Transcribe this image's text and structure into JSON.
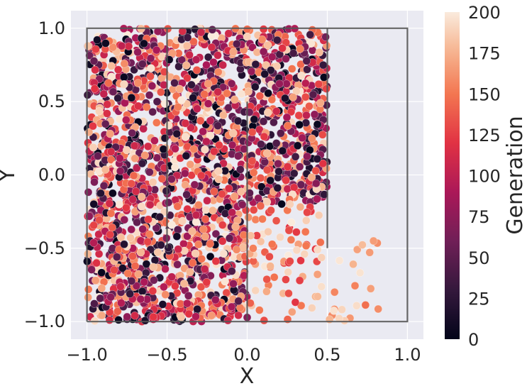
{
  "chart_data": {
    "type": "scatter",
    "xlabel": "X",
    "ylabel": "Y",
    "xlim": [
      -1.1,
      1.1
    ],
    "ylim": [
      -1.12,
      1.12
    ],
    "x_ticks": [
      -1.0,
      -0.5,
      0.0,
      0.5,
      1.0
    ],
    "x_tick_labels": [
      "−1.0",
      "−0.5",
      "0.0",
      "0.5",
      "1.0"
    ],
    "y_ticks": [
      -1.0,
      -0.5,
      0.0,
      0.5,
      1.0
    ],
    "y_tick_labels": [
      "−1.0",
      "−0.5",
      "0.0",
      "0.5",
      "1.0"
    ],
    "grid": true,
    "style": "seaborn-darkgrid",
    "colormap": "rocket",
    "colorbar": {
      "label": "Generation",
      "range": [
        0,
        200
      ],
      "ticks": [
        0,
        25,
        50,
        75,
        100,
        125,
        150,
        175,
        200
      ],
      "tick_labels": [
        "0",
        "25",
        "50",
        "75",
        "100",
        "125",
        "150",
        "175",
        "200"
      ]
    },
    "outline_segments": [
      {
        "name": "outer-box",
        "points": [
          [
            -1,
            -1
          ],
          [
            1,
            -1
          ],
          [
            1,
            1
          ],
          [
            -1,
            1
          ],
          [
            -1,
            -1
          ]
        ]
      },
      {
        "name": "wall-left",
        "points": [
          [
            -0.5,
            1
          ],
          [
            -0.5,
            -0.5
          ]
        ]
      },
      {
        "name": "wall-middle",
        "points": [
          [
            0,
            -1
          ],
          [
            0,
            0.5
          ]
        ]
      },
      {
        "name": "wall-right",
        "points": [
          [
            0.5,
            1
          ],
          [
            0.5,
            -0.5
          ]
        ]
      }
    ],
    "point_regions": [
      {
        "name": "dense-left-half",
        "x_range": [
          -1.0,
          0.0
        ],
        "y_range": [
          -1.0,
          1.0
        ],
        "count": 1700,
        "generation_range": [
          0,
          200
        ]
      },
      {
        "name": "dense-upper-middle",
        "x_range": [
          0.0,
          0.5
        ],
        "y_range": [
          -0.2,
          1.0
        ],
        "count": 550,
        "generation_range": [
          0,
          200
        ]
      },
      {
        "name": "sparse-lower-middle",
        "x_range": [
          0.0,
          0.5
        ],
        "y_range": [
          -1.0,
          -0.2
        ],
        "count": 80,
        "generation_range": [
          120,
          200
        ]
      },
      {
        "name": "sparse-right",
        "x_range": [
          0.5,
          0.85
        ],
        "y_range": [
          -1.0,
          -0.4
        ],
        "count": 22,
        "generation_range": [
          140,
          200
        ]
      }
    ],
    "background_color": "#eaeaf2",
    "grid_color": "#ffffff",
    "outline_color": "#555555",
    "marker_edge_color": "#ffffff"
  }
}
